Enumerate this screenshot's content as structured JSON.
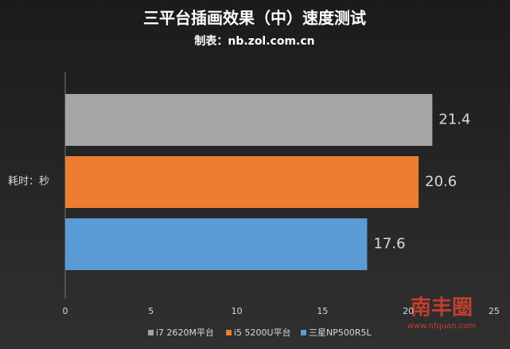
{
  "chart_data": {
    "type": "bar",
    "orientation": "horizontal",
    "title": "三平台插画效果（中）速度测试",
    "subtitle": "制表：nb.zol.com.cn",
    "y_label": "耗时：秒",
    "categories": [
      "耗时：秒"
    ],
    "series": [
      {
        "name": "i7 2620M平台",
        "color": "#a6a6a6",
        "values": [
          21.4
        ]
      },
      {
        "name": "i5 5200U平台",
        "color": "#ed7d31",
        "values": [
          20.6
        ]
      },
      {
        "name": "三星NP500R5L",
        "color": "#5b9bd5",
        "values": [
          17.6
        ]
      }
    ],
    "xlim": [
      0,
      25
    ],
    "xticks": [
      0,
      5,
      10,
      15,
      20,
      25
    ],
    "grid": false,
    "legend": "bottom",
    "watermark": {
      "brand": "南丰圈",
      "url": "www.nfquan.com"
    }
  }
}
